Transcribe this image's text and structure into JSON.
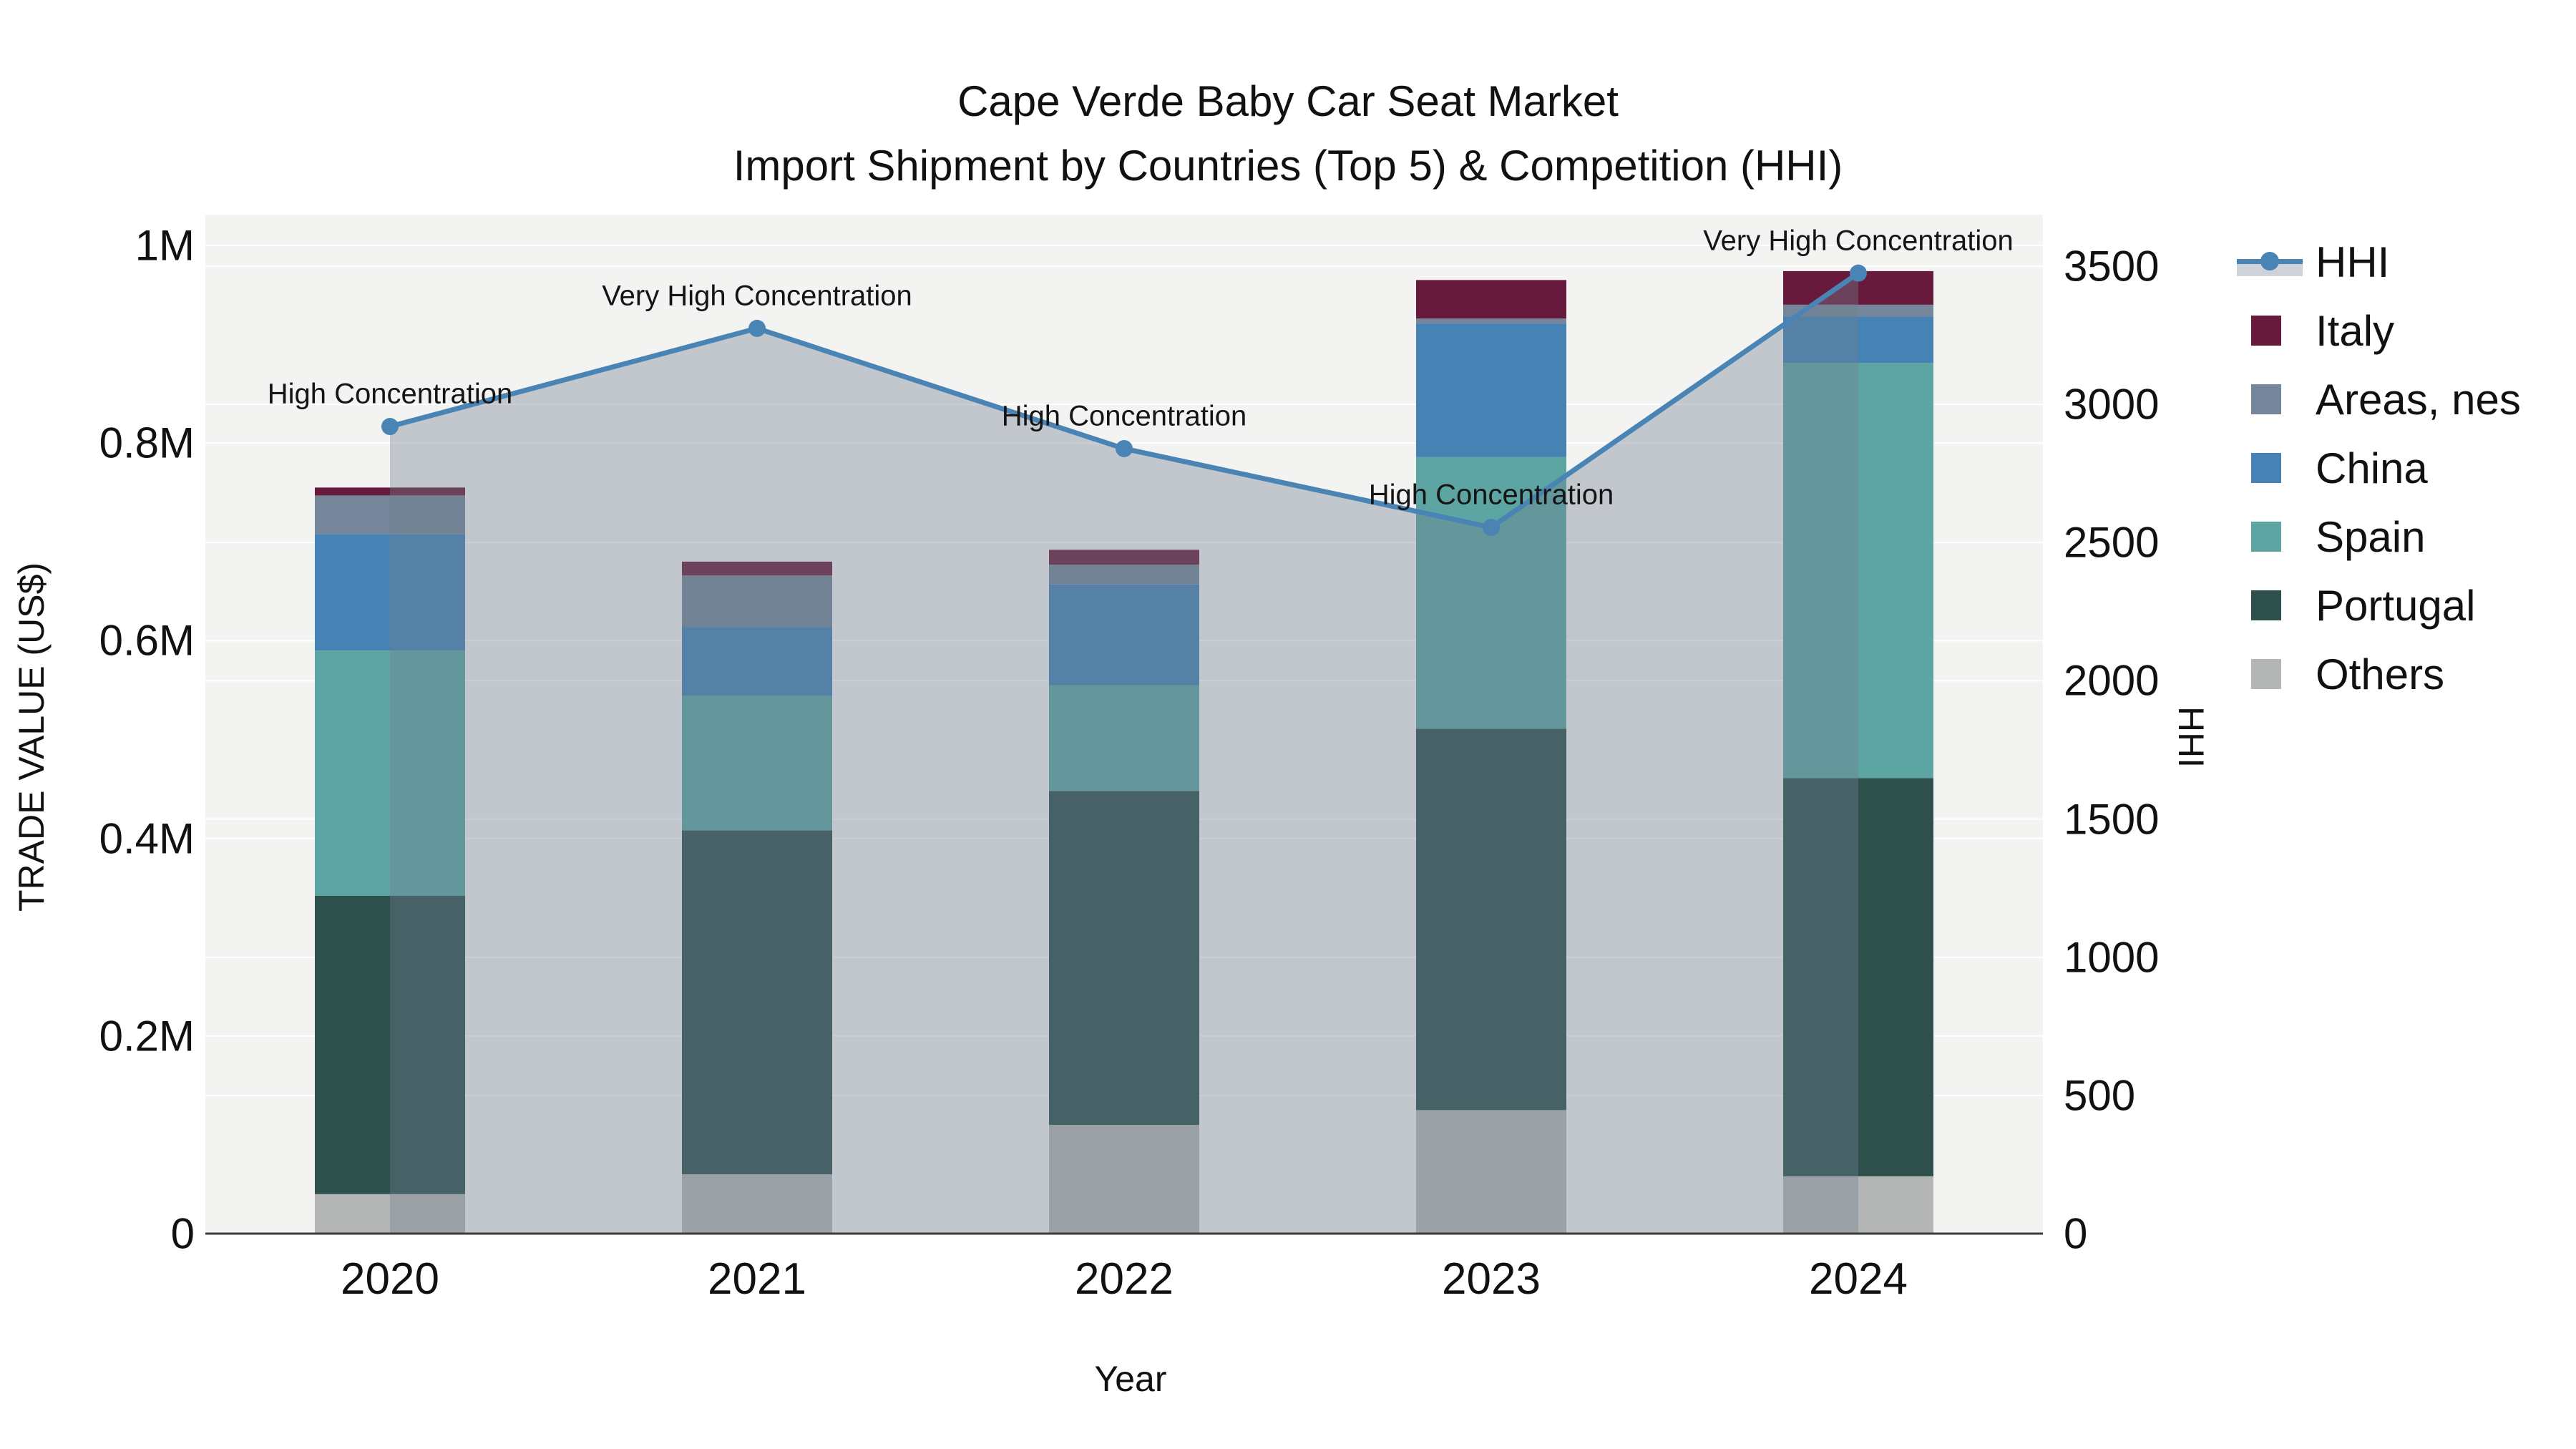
{
  "chart_data": {
    "type": "combo_stacked_bar_line",
    "title_line1": "Cape Verde Baby Car Seat Market",
    "title_line2": "Import Shipment by Countries (Top 5) & Competition (HHI)",
    "xlabel": "Year",
    "ylabel_left": "TRADE VALUE (US$)",
    "ylabel_right": "HHI",
    "categories": [
      "2020",
      "2021",
      "2022",
      "2023",
      "2024"
    ],
    "ylim_left": [
      0,
      1000000
    ],
    "yticks_left": [
      {
        "value": 0,
        "label": "0"
      },
      {
        "value": 200000,
        "label": "0.2M"
      },
      {
        "value": 400000,
        "label": "0.4M"
      },
      {
        "value": 600000,
        "label": "0.6M"
      },
      {
        "value": 800000,
        "label": "0.8M"
      },
      {
        "value": 1000000,
        "label": "1M"
      }
    ],
    "ylim_right": [
      0,
      3500
    ],
    "yticks_right": [
      {
        "value": 0,
        "label": "0"
      },
      {
        "value": 500,
        "label": "500"
      },
      {
        "value": 1000,
        "label": "1000"
      },
      {
        "value": 1500,
        "label": "1500"
      },
      {
        "value": 2000,
        "label": "2000"
      },
      {
        "value": 2500,
        "label": "2500"
      },
      {
        "value": 3000,
        "label": "3000"
      },
      {
        "value": 3500,
        "label": "3500"
      }
    ],
    "grid": true,
    "plot_background": "#F3F3F2",
    "gridline_color": "#FFFFFF",
    "axisline_color": "#3C3C3C",
    "series": [
      {
        "name": "Others",
        "color": "#B4B6B6",
        "values": [
          40000,
          60000,
          110000,
          125000,
          58000
        ]
      },
      {
        "name": "Portugal",
        "color": "#2E504C",
        "values": [
          302000,
          348000,
          338000,
          386000,
          403000
        ]
      },
      {
        "name": "Spain",
        "color": "#5DA5A2",
        "values": [
          248000,
          136000,
          107000,
          275000,
          420000
        ]
      },
      {
        "name": "China",
        "color": "#4682B4",
        "values": [
          118000,
          70000,
          102000,
          135000,
          47000
        ]
      },
      {
        "name": "Areas, nes",
        "color": "#75859A",
        "values": [
          39000,
          52000,
          20000,
          5000,
          12000
        ]
      },
      {
        "name": "Italy",
        "color": "#681A3D",
        "values": [
          8000,
          14000,
          15000,
          39000,
          34000
        ]
      }
    ],
    "line_series": {
      "name": "HHI",
      "color": "#4A84B5",
      "area_fill_color": "rgba(112,128,144,0.38)",
      "values": [
        2920,
        3275,
        2840,
        2555,
        3475
      ]
    },
    "annotations": [
      {
        "category": "2020",
        "label": "High Concentration"
      },
      {
        "category": "2021",
        "label": "Very High Concentration"
      },
      {
        "category": "2022",
        "label": "High Concentration"
      },
      {
        "category": "2023",
        "label": "High Concentration"
      },
      {
        "category": "2024",
        "label": "Very High Concentration"
      }
    ],
    "legend_order": [
      "HHI",
      "Italy",
      "Areas, nes",
      "China",
      "Spain",
      "Portugal",
      "Others"
    ],
    "legend_position": "right"
  }
}
